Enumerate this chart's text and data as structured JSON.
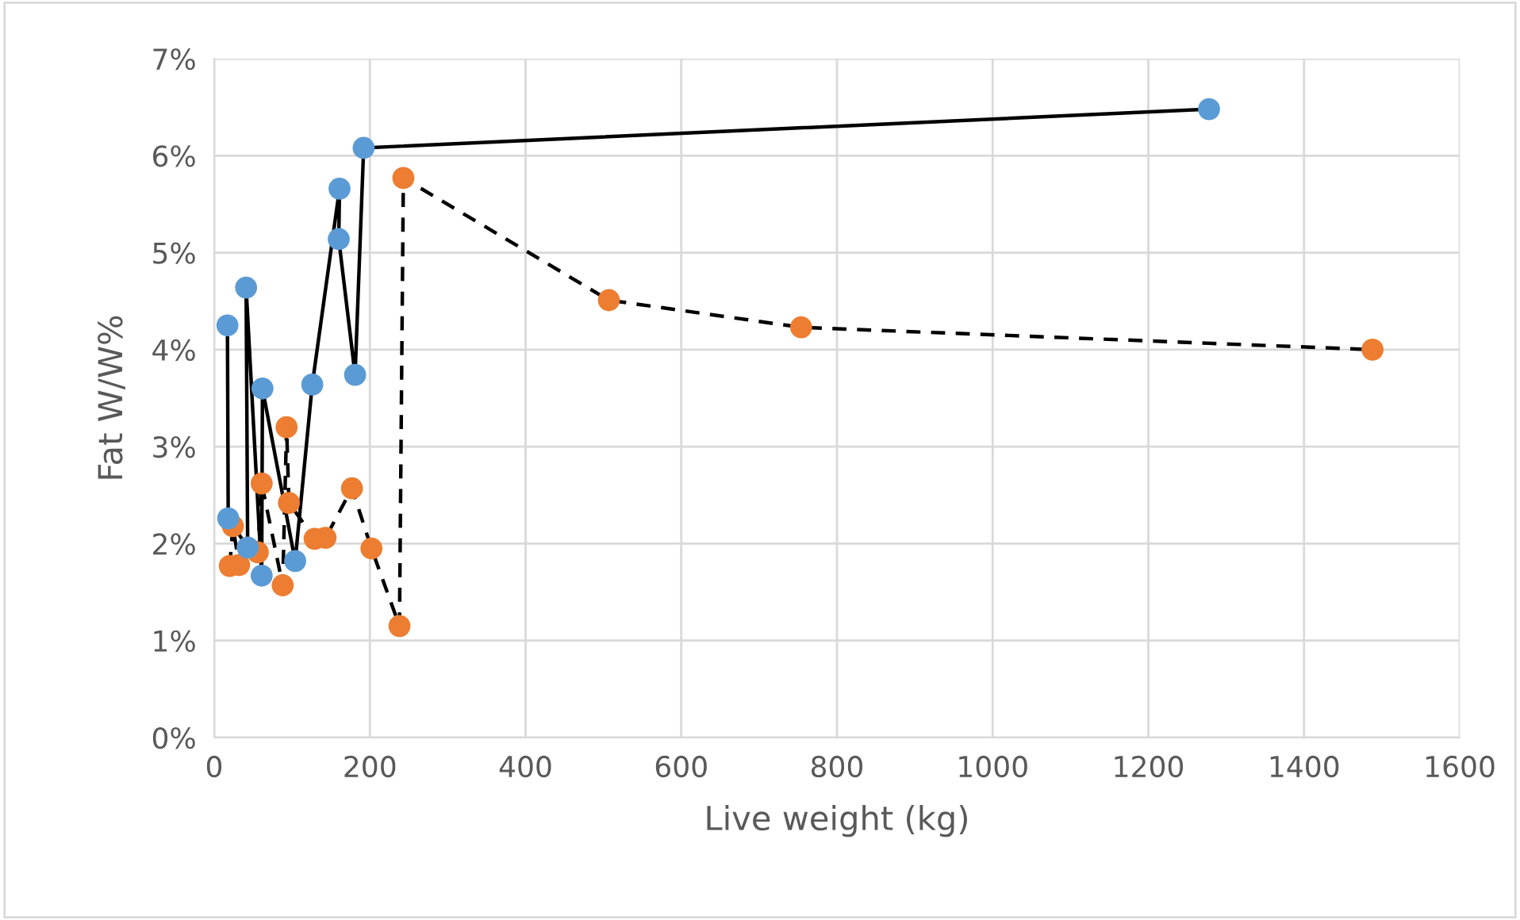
{
  "chart_data": {
    "type": "line",
    "xlabel": "Live weight (kg)",
    "ylabel": "Fat W/W%",
    "grid": true,
    "marker": "circle",
    "legend": false,
    "xlim": [
      0,
      1600
    ],
    "xticks": [
      0,
      200,
      400,
      600,
      800,
      1000,
      1200,
      1400,
      1600
    ],
    "ylim": [
      0,
      7
    ],
    "yticks": [
      {
        "value": 0,
        "label": "0%"
      },
      {
        "value": 1,
        "label": "1%"
      },
      {
        "value": 2,
        "label": "2%"
      },
      {
        "value": 3,
        "label": "3%"
      },
      {
        "value": 4,
        "label": "4%"
      },
      {
        "value": 5,
        "label": "5%"
      },
      {
        "value": 6,
        "label": "6%"
      },
      {
        "value": 7,
        "label": "7%"
      }
    ],
    "series": [
      {
        "color": "#5b9bd5",
        "line_style": "solid",
        "x": [
          17,
          18,
          43,
          41,
          61,
          62,
          104,
          126,
          161,
          160,
          181,
          192,
          1278
        ],
        "values": [
          4.25,
          2.26,
          1.96,
          4.64,
          1.67,
          3.6,
          1.82,
          3.64,
          5.66,
          5.14,
          3.74,
          6.08,
          6.48
        ]
      },
      {
        "color": "#ed7d31",
        "line_style": "dashed",
        "x": [
          20,
          24,
          32,
          56,
          61,
          88,
          93,
          96,
          129,
          143,
          177,
          202,
          238,
          243,
          507,
          754,
          1488
        ],
        "values": [
          1.77,
          2.18,
          1.78,
          1.91,
          2.62,
          1.57,
          3.2,
          2.42,
          2.05,
          2.06,
          2.57,
          1.95,
          1.15,
          5.77,
          4.51,
          4.23,
          4.0
        ]
      }
    ]
  }
}
